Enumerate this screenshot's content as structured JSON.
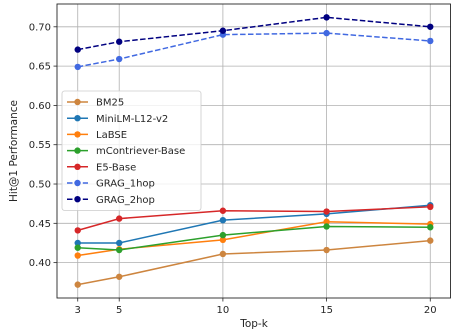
{
  "chart_data": {
    "type": "line",
    "xlabel": "Top-k",
    "ylabel": "Hit@1 Performance",
    "x": [
      3,
      5,
      10,
      15,
      20
    ],
    "x_ticks": [
      "3",
      "5",
      "10",
      "15",
      "20"
    ],
    "y_ticks": [
      "0.40",
      "0.45",
      "0.50",
      "0.55",
      "0.60",
      "0.65",
      "0.70"
    ],
    "xlim": [
      2,
      21
    ],
    "ylim": [
      0.355,
      0.729
    ],
    "grid": true,
    "legend_position": "center-left",
    "series": [
      {
        "name": "BM25",
        "color": "#cd853f",
        "dashed": false,
        "values": [
          0.372,
          0.382,
          0.411,
          0.416,
          0.428
        ]
      },
      {
        "name": "MiniLM-L12-v2",
        "color": "#1f77b4",
        "dashed": false,
        "values": [
          0.425,
          0.425,
          0.454,
          0.462,
          0.473
        ]
      },
      {
        "name": "LaBSE",
        "color": "#ff7f0e",
        "dashed": false,
        "values": [
          0.409,
          0.417,
          0.429,
          0.452,
          0.449
        ]
      },
      {
        "name": "mContriever-Base",
        "color": "#2ca02c",
        "dashed": false,
        "values": [
          0.419,
          0.416,
          0.435,
          0.446,
          0.445
        ]
      },
      {
        "name": "E5-Base",
        "color": "#d62728",
        "dashed": false,
        "values": [
          0.441,
          0.456,
          0.466,
          0.465,
          0.471
        ]
      },
      {
        "name": "GRAG_1hop",
        "color": "#4169e1",
        "dashed": true,
        "values": [
          0.649,
          0.659,
          0.69,
          0.692,
          0.682
        ]
      },
      {
        "name": "GRAG_2hop",
        "color": "#000080",
        "dashed": true,
        "values": [
          0.671,
          0.681,
          0.695,
          0.712,
          0.7
        ]
      }
    ]
  }
}
